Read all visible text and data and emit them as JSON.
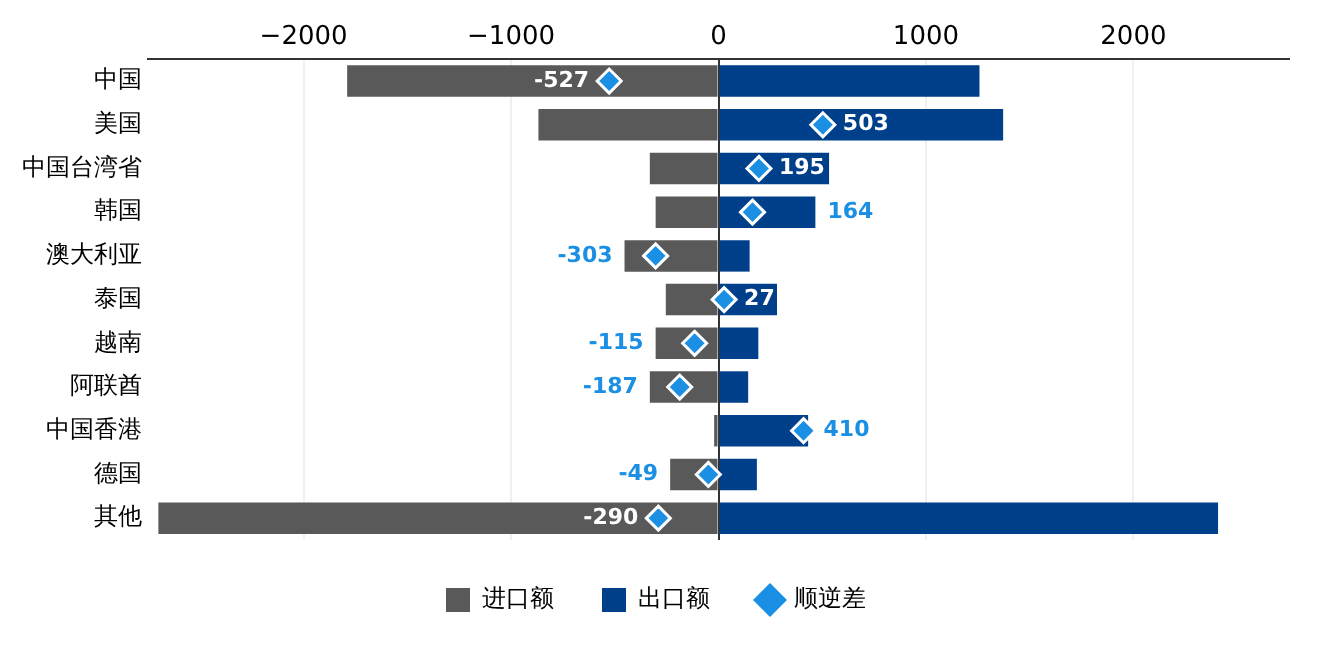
{
  "chart_data": {
    "type": "bar",
    "orientation": "horizontal",
    "stacked": true,
    "categories": [
      "中国",
      "美国",
      "中国台湾省",
      "韩国",
      "澳大利亚",
      "泰国",
      "越南",
      "阿联酋",
      "中国香港",
      "德国",
      "其他"
    ],
    "series": [
      {
        "name": "进口额",
        "color": "#595959",
        "values": [
          -1790,
          -868,
          -331,
          -303,
          -453,
          -254,
          -303,
          -331,
          -21,
          -233,
          -2700
        ]
      },
      {
        "name": "出口额",
        "color": "#003f8a",
        "values": [
          1258,
          1372,
          533,
          467,
          150,
          282,
          192,
          143,
          432,
          185,
          2408
        ]
      },
      {
        "name": "顺逆差",
        "type": "scatter",
        "color": "#1a8fe3",
        "marker": "diamond",
        "data_labels": true,
        "values": [
          -527,
          503,
          195,
          164,
          -303,
          27,
          -115,
          -187,
          410,
          -49,
          -290
        ]
      }
    ],
    "xlim": [
      -2750,
      2750
    ],
    "xticks": [
      {
        "value": -2000,
        "label": "−2000"
      },
      {
        "value": -1000,
        "label": "−1000"
      },
      0,
      1000,
      2000
    ],
    "grid": "x",
    "legend": "bottom"
  }
}
